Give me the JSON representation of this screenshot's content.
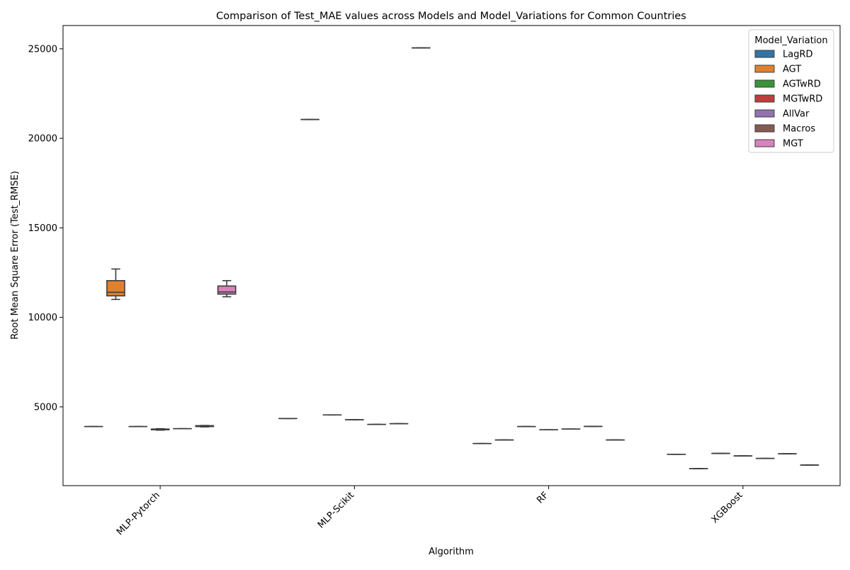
{
  "chart_data": {
    "type": "box",
    "title": "Comparison of Test_MAE values across Models and Model_Variations for Common Countries",
    "xlabel": "Algorithm",
    "ylabel": "Root Mean Square Error (Test_RMSE)",
    "categories": [
      "MLP-Pytorch",
      "MLP-Scikit",
      "RF",
      "XGBoost"
    ],
    "yticks": [
      5000,
      10000,
      15000,
      20000,
      25000
    ],
    "ylim": [
      600,
      26300
    ],
    "legend": {
      "title": "Model_Variation",
      "placement": "top-right"
    },
    "series": [
      {
        "name": "LagRD",
        "color": "#3274a1",
        "boxes": [
          {
            "category": "MLP-Pytorch",
            "whislo": 3900,
            "q1": 3900,
            "med": 3900,
            "q3": 3900,
            "whishi": 3900
          },
          {
            "category": "MLP-Scikit",
            "whislo": 4350,
            "q1": 4350,
            "med": 4350,
            "q3": 4350,
            "whishi": 4350
          },
          {
            "category": "RF",
            "whislo": 2950,
            "q1": 2950,
            "med": 2950,
            "q3": 2950,
            "whishi": 2950
          },
          {
            "category": "XGBoost",
            "whislo": 2350,
            "q1": 2350,
            "med": 2350,
            "q3": 2350,
            "whishi": 2350
          }
        ]
      },
      {
        "name": "AGT",
        "color": "#e1812c",
        "boxes": [
          {
            "category": "MLP-Pytorch",
            "whislo": 11000,
            "q1": 11200,
            "med": 11400,
            "q3": 12050,
            "whishi": 12700
          },
          {
            "category": "MLP-Scikit",
            "whislo": 21050,
            "q1": 21050,
            "med": 21050,
            "q3": 21050,
            "whishi": 21050
          },
          {
            "category": "RF",
            "whislo": 3150,
            "q1": 3150,
            "med": 3150,
            "q3": 3150,
            "whishi": 3150
          },
          {
            "category": "XGBoost",
            "whislo": 1550,
            "q1": 1550,
            "med": 1550,
            "q3": 1550,
            "whishi": 1550
          }
        ]
      },
      {
        "name": "AGTwRD",
        "color": "#3a923a",
        "boxes": [
          {
            "category": "MLP-Pytorch",
            "whislo": 3900,
            "q1": 3900,
            "med": 3900,
            "q3": 3900,
            "whishi": 3900
          },
          {
            "category": "MLP-Scikit",
            "whislo": 4550,
            "q1": 4550,
            "med": 4550,
            "q3": 4550,
            "whishi": 4550
          },
          {
            "category": "RF",
            "whislo": 3900,
            "q1": 3900,
            "med": 3900,
            "q3": 3900,
            "whishi": 3900
          },
          {
            "category": "XGBoost",
            "whislo": 2400,
            "q1": 2400,
            "med": 2400,
            "q3": 2400,
            "whishi": 2400
          }
        ]
      },
      {
        "name": "MGTwRD",
        "color": "#c03d3e",
        "boxes": [
          {
            "category": "MLP-Pytorch",
            "whislo": 3700,
            "q1": 3720,
            "med": 3740,
            "q3": 3760,
            "whishi": 3780
          },
          {
            "category": "MLP-Scikit",
            "whislo": 4280,
            "q1": 4280,
            "med": 4280,
            "q3": 4280,
            "whishi": 4280
          },
          {
            "category": "RF",
            "whislo": 3720,
            "q1": 3720,
            "med": 3720,
            "q3": 3720,
            "whishi": 3720
          },
          {
            "category": "XGBoost",
            "whislo": 2260,
            "q1": 2260,
            "med": 2260,
            "q3": 2260,
            "whishi": 2260
          }
        ]
      },
      {
        "name": "AllVar",
        "color": "#9372b2",
        "boxes": [
          {
            "category": "MLP-Pytorch",
            "whislo": 3780,
            "q1": 3780,
            "med": 3780,
            "q3": 3780,
            "whishi": 3780
          },
          {
            "category": "MLP-Scikit",
            "whislo": 4020,
            "q1": 4020,
            "med": 4020,
            "q3": 4020,
            "whishi": 4020
          },
          {
            "category": "RF",
            "whislo": 3760,
            "q1": 3760,
            "med": 3760,
            "q3": 3760,
            "whishi": 3760
          },
          {
            "category": "XGBoost",
            "whislo": 2120,
            "q1": 2120,
            "med": 2120,
            "q3": 2120,
            "whishi": 2120
          }
        ]
      },
      {
        "name": "Macros",
        "color": "#845b53",
        "boxes": [
          {
            "category": "MLP-Pytorch",
            "whislo": 3880,
            "q1": 3900,
            "med": 3920,
            "q3": 3950,
            "whishi": 3960
          },
          {
            "category": "MLP-Scikit",
            "whislo": 4060,
            "q1": 4060,
            "med": 4060,
            "q3": 4060,
            "whishi": 4060
          },
          {
            "category": "RF",
            "whislo": 3910,
            "q1": 3910,
            "med": 3910,
            "q3": 3910,
            "whishi": 3910
          },
          {
            "category": "XGBoost",
            "whislo": 2380,
            "q1": 2380,
            "med": 2380,
            "q3": 2380,
            "whishi": 2380
          }
        ]
      },
      {
        "name": "MGT",
        "color": "#d684bd",
        "boxes": [
          {
            "category": "MLP-Pytorch",
            "whislo": 11150,
            "q1": 11300,
            "med": 11420,
            "q3": 11750,
            "whishi": 12050
          },
          {
            "category": "MLP-Scikit",
            "whislo": 25050,
            "q1": 25050,
            "med": 25050,
            "q3": 25050,
            "whishi": 25050
          },
          {
            "category": "RF",
            "whislo": 3150,
            "q1": 3150,
            "med": 3150,
            "q3": 3150,
            "whishi": 3150
          },
          {
            "category": "XGBoost",
            "whislo": 1750,
            "q1": 1750,
            "med": 1750,
            "q3": 1750,
            "whishi": 1750
          }
        ]
      }
    ]
  }
}
